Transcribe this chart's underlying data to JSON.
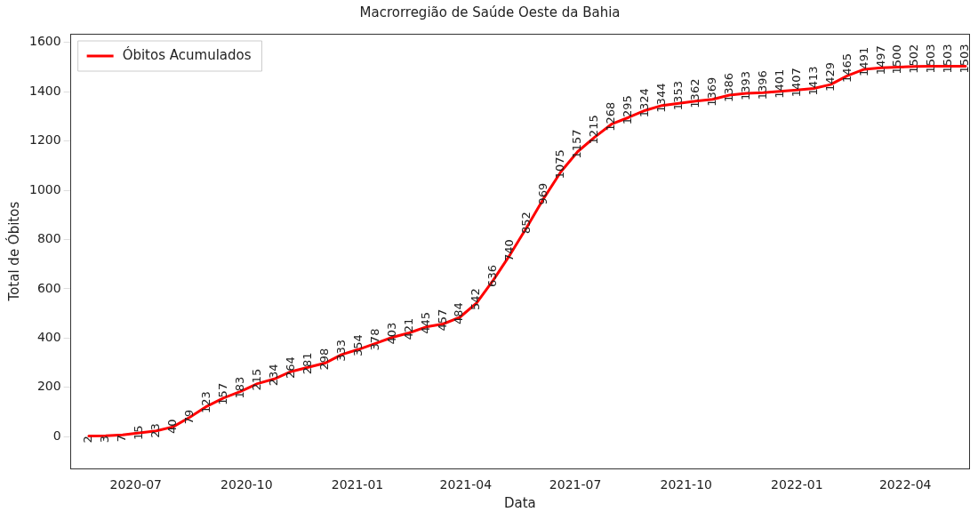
{
  "chart_data": {
    "type": "line",
    "title": "Macrorregião de Saúde Oeste da Bahia",
    "xlabel": "Data",
    "ylabel": "Total de Óbitos",
    "x": [
      "2020-05-23",
      "2020-06-06",
      "2020-06-20",
      "2020-07-04",
      "2020-07-18",
      "2020-08-01",
      "2020-08-15",
      "2020-08-29",
      "2020-09-12",
      "2020-09-26",
      "2020-10-10",
      "2020-10-24",
      "2020-11-07",
      "2020-11-21",
      "2020-12-05",
      "2020-12-19",
      "2021-01-02",
      "2021-01-16",
      "2021-01-30",
      "2021-02-13",
      "2021-02-27",
      "2021-03-13",
      "2021-03-27",
      "2021-04-10",
      "2021-04-24",
      "2021-05-08",
      "2021-05-22",
      "2021-06-05",
      "2021-06-19",
      "2021-07-03",
      "2021-07-17",
      "2021-07-31",
      "2021-08-14",
      "2021-08-28",
      "2021-09-11",
      "2021-09-25",
      "2021-10-09",
      "2021-10-23",
      "2021-11-06",
      "2021-11-20",
      "2021-12-04",
      "2021-12-18",
      "2022-01-01",
      "2022-01-15",
      "2022-01-29",
      "2022-02-12",
      "2022-02-26",
      "2022-03-12",
      "2022-03-26",
      "2022-04-09",
      "2022-04-23",
      "2022-05-07",
      "2022-05-21"
    ],
    "series": [
      {
        "name": "Óbitos Acumulados",
        "color": "#ff0000",
        "values": [
          2,
          3,
          7,
          15,
          23,
          40,
          79,
          123,
          157,
          183,
          215,
          234,
          264,
          281,
          298,
          333,
          354,
          378,
          403,
          421,
          445,
          457,
          484,
          542,
          636,
          740,
          852,
          969,
          1075,
          1157,
          1215,
          1268,
          1295,
          1324,
          1344,
          1353,
          1362,
          1369,
          1386,
          1393,
          1396,
          1401,
          1407,
          1413,
          1429,
          1465,
          1491,
          1497,
          1500,
          1502,
          1503,
          1503,
          1503
        ]
      }
    ],
    "xlim": [
      "2020-05-08",
      "2022-05-24"
    ],
    "xticks": [
      "2020-07",
      "2020-10",
      "2021-01",
      "2021-04",
      "2021-07",
      "2021-10",
      "2022-01",
      "2022-04"
    ],
    "ylim": [
      -130,
      1635
    ],
    "yticks": [
      0,
      200,
      400,
      600,
      800,
      1000,
      1200,
      1400,
      1600
    ],
    "data_labels": true,
    "legend": "top left",
    "grid": false,
    "marker": "none",
    "line_style": "solid"
  }
}
